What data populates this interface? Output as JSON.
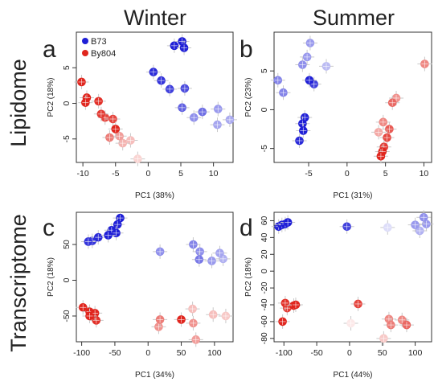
{
  "figure": {
    "col_titles": [
      "Winter",
      "Summer"
    ],
    "row_titles": [
      "Lipidome",
      "Transcriptome"
    ]
  },
  "legend": {
    "entries": [
      {
        "label": "B73",
        "color": "#1f1fd6"
      },
      {
        "label": "By804",
        "color": "#e0261e"
      }
    ]
  },
  "chart_data": [
    {
      "panel": "a",
      "type": "scatter",
      "xlabel": "PC1 (38%)",
      "ylabel": "PC2 (18%)",
      "xlim": [
        -11,
        13
      ],
      "ylim": [
        -8.3,
        10
      ],
      "xticks": [
        -10,
        -5,
        0,
        5,
        10
      ],
      "yticks": [
        -5,
        0,
        5
      ],
      "series": [
        {
          "name": "B73",
          "points": [
            {
              "x": 4.0,
              "y": 8.1,
              "a": 1.0
            },
            {
              "x": 5.2,
              "y": 8.7,
              "a": 1.0
            },
            {
              "x": 5.5,
              "y": 7.8,
              "a": 1.0
            },
            {
              "x": 0.8,
              "y": 4.4,
              "a": 0.95
            },
            {
              "x": 2.0,
              "y": 3.2,
              "a": 0.9
            },
            {
              "x": 3.3,
              "y": 2.0,
              "a": 0.85
            },
            {
              "x": 5.6,
              "y": 2.1,
              "a": 0.8
            },
            {
              "x": 5.2,
              "y": -0.6,
              "a": 0.7
            },
            {
              "x": 8.3,
              "y": -1.2,
              "a": 0.65
            },
            {
              "x": 7.0,
              "y": -2.0,
              "a": 0.5
            },
            {
              "x": 10.7,
              "y": -0.8,
              "a": 0.45
            },
            {
              "x": 10.6,
              "y": -3.0,
              "a": 0.4
            },
            {
              "x": 12.5,
              "y": -2.3,
              "a": 0.38
            }
          ]
        },
        {
          "name": "By804",
          "points": [
            {
              "x": -10.2,
              "y": 3.0,
              "a": 1.0
            },
            {
              "x": -9.4,
              "y": 0.8,
              "a": 1.0
            },
            {
              "x": -9.6,
              "y": 0.1,
              "a": 1.0
            },
            {
              "x": -7.6,
              "y": 0.3,
              "a": 0.95
            },
            {
              "x": -7.2,
              "y": -1.5,
              "a": 0.9
            },
            {
              "x": -6.6,
              "y": -2.0,
              "a": 0.85
            },
            {
              "x": -5.4,
              "y": -2.2,
              "a": 0.85
            },
            {
              "x": -5.0,
              "y": -3.6,
              "a": 1.0
            },
            {
              "x": -5.9,
              "y": -4.8,
              "a": 0.6
            },
            {
              "x": -4.4,
              "y": -4.6,
              "a": 0.45
            },
            {
              "x": -3.9,
              "y": -5.6,
              "a": 0.35
            },
            {
              "x": -2.7,
              "y": -5.2,
              "a": 0.3
            },
            {
              "x": -1.6,
              "y": -7.8,
              "a": 0.2
            }
          ]
        }
      ]
    },
    {
      "panel": "b",
      "type": "scatter",
      "xlabel": "PC1 (31%)",
      "ylabel": "PC2 (23%)",
      "xlim": [
        -9.5,
        11
      ],
      "ylim": [
        -6.8,
        10
      ],
      "xticks": [
        -5,
        0,
        5,
        10
      ],
      "yticks": [
        -5,
        0,
        5
      ],
      "series": [
        {
          "name": "B73",
          "points": [
            {
              "x": -4.8,
              "y": 8.6,
              "a": 0.45
            },
            {
              "x": -5.2,
              "y": 6.8,
              "a": 0.45
            },
            {
              "x": -5.8,
              "y": 5.8,
              "a": 0.5
            },
            {
              "x": -2.7,
              "y": 5.6,
              "a": 0.3
            },
            {
              "x": -9.0,
              "y": 3.8,
              "a": 0.55
            },
            {
              "x": -8.3,
              "y": 2.2,
              "a": 0.55
            },
            {
              "x": -4.9,
              "y": 3.8,
              "a": 1.0
            },
            {
              "x": -4.3,
              "y": 3.3,
              "a": 0.85
            },
            {
              "x": -5.5,
              "y": -1.0,
              "a": 1.0
            },
            {
              "x": -5.8,
              "y": -1.8,
              "a": 1.0
            },
            {
              "x": -5.7,
              "y": -2.7,
              "a": 1.0
            },
            {
              "x": -6.2,
              "y": -4.0,
              "a": 0.95
            }
          ]
        },
        {
          "name": "By804",
          "points": [
            {
              "x": 10.1,
              "y": 5.9,
              "a": 0.55
            },
            {
              "x": 6.4,
              "y": 1.5,
              "a": 0.5
            },
            {
              "x": 5.9,
              "y": 0.9,
              "a": 0.7
            },
            {
              "x": 4.7,
              "y": -1.6,
              "a": 0.55
            },
            {
              "x": 5.5,
              "y": -2.5,
              "a": 0.75
            },
            {
              "x": 4.1,
              "y": -2.9,
              "a": 0.4
            },
            {
              "x": 5.2,
              "y": -3.6,
              "a": 0.85
            },
            {
              "x": 4.8,
              "y": -4.8,
              "a": 0.9
            },
            {
              "x": 4.6,
              "y": -5.4,
              "a": 1.0
            },
            {
              "x": 4.4,
              "y": -6.0,
              "a": 1.0
            }
          ]
        }
      ]
    },
    {
      "panel": "c",
      "type": "scatter",
      "xlabel": "PC1 (34%)",
      "ylabel": "PC2 (18%)",
      "xlim": [
        -108,
        128
      ],
      "ylim": [
        -86,
        95
      ],
      "xticks": [
        -100,
        -50,
        0,
        50,
        100
      ],
      "yticks": [
        -50,
        0,
        50
      ],
      "series": [
        {
          "name": "B73",
          "points": [
            {
              "x": -42,
              "y": 87,
              "a": 1.0
            },
            {
              "x": -46,
              "y": 78,
              "a": 1.0
            },
            {
              "x": -55,
              "y": 70,
              "a": 1.0
            },
            {
              "x": -48,
              "y": 66,
              "a": 1.0
            },
            {
              "x": -60,
              "y": 63,
              "a": 1.0
            },
            {
              "x": -75,
              "y": 60,
              "a": 0.95
            },
            {
              "x": -84,
              "y": 55,
              "a": 0.9
            },
            {
              "x": -90,
              "y": 54,
              "a": 0.9
            },
            {
              "x": 18,
              "y": 40,
              "a": 0.5
            },
            {
              "x": 68,
              "y": 50,
              "a": 0.55
            },
            {
              "x": 78,
              "y": 40,
              "a": 0.5
            },
            {
              "x": 77,
              "y": 29,
              "a": 0.6
            },
            {
              "x": 96,
              "y": 27,
              "a": 0.45
            },
            {
              "x": 108,
              "y": 38,
              "a": 0.4
            },
            {
              "x": 113,
              "y": 30,
              "a": 0.35
            }
          ]
        },
        {
          "name": "By804",
          "points": [
            {
              "x": -98,
              "y": -38,
              "a": 1.0
            },
            {
              "x": -88,
              "y": -44,
              "a": 1.0
            },
            {
              "x": -80,
              "y": -46,
              "a": 1.0
            },
            {
              "x": -88,
              "y": -50,
              "a": 1.0
            },
            {
              "x": -78,
              "y": -56,
              "a": 0.95
            },
            {
              "x": 18,
              "y": -55,
              "a": 0.6
            },
            {
              "x": 16,
              "y": -65,
              "a": 0.5
            },
            {
              "x": 50,
              "y": -55,
              "a": 1.0
            },
            {
              "x": 68,
              "y": -60,
              "a": 0.5
            },
            {
              "x": 72,
              "y": -83,
              "a": 0.45
            },
            {
              "x": 67,
              "y": -40,
              "a": 0.3
            },
            {
              "x": 98,
              "y": -48,
              "a": 0.3
            },
            {
              "x": 117,
              "y": -50,
              "a": 0.25
            }
          ]
        }
      ]
    },
    {
      "panel": "d",
      "type": "scatter",
      "xlabel": "PC1 (44%)",
      "ylabel": "PC2 (18%)",
      "xlim": [
        -115,
        125
      ],
      "ylim": [
        -84,
        70
      ],
      "xticks": [
        -100,
        -50,
        0,
        50,
        100
      ],
      "yticks": [
        60,
        40,
        20,
        0,
        -20,
        -40,
        -60,
        -80
      ],
      "series": [
        {
          "name": "B73",
          "points": [
            {
              "x": -108,
              "y": 53,
              "a": 1.0
            },
            {
              "x": -103,
              "y": 55,
              "a": 1.0
            },
            {
              "x": -98,
              "y": 56,
              "a": 1.0
            },
            {
              "x": -94,
              "y": 58,
              "a": 1.0
            },
            {
              "x": -4,
              "y": 53,
              "a": 0.85
            },
            {
              "x": 58,
              "y": 52,
              "a": 0.15
            },
            {
              "x": 100,
              "y": 55,
              "a": 0.45
            },
            {
              "x": 107,
              "y": 48,
              "a": 0.35
            },
            {
              "x": 113,
              "y": 64,
              "a": 0.5
            },
            {
              "x": 117,
              "y": 56,
              "a": 0.45
            }
          ]
        },
        {
          "name": "By804",
          "points": [
            {
              "x": -102,
              "y": -60,
              "a": 1.0
            },
            {
              "x": -98,
              "y": -38,
              "a": 0.95
            },
            {
              "x": -95,
              "y": -44,
              "a": 0.9
            },
            {
              "x": -85,
              "y": -41,
              "a": 1.0
            },
            {
              "x": -82,
              "y": -40,
              "a": 1.0
            },
            {
              "x": 13,
              "y": -39,
              "a": 0.85
            },
            {
              "x": 2,
              "y": -62,
              "a": 0.1
            },
            {
              "x": 52,
              "y": -80,
              "a": 0.25
            },
            {
              "x": 60,
              "y": -57,
              "a": 0.55
            },
            {
              "x": 63,
              "y": -64,
              "a": 0.6
            },
            {
              "x": 80,
              "y": -58,
              "a": 0.55
            },
            {
              "x": 87,
              "y": -64,
              "a": 0.7
            }
          ]
        }
      ]
    }
  ]
}
